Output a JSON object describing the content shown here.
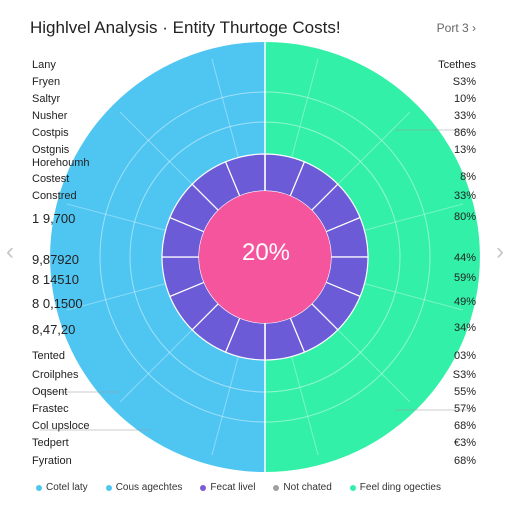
{
  "header": {
    "title": "Highlvel Analysis · Entity Thurtoge Costs!",
    "page_nav": "Port 3 ›"
  },
  "nav": {
    "prev_icon": "chevron-left-icon",
    "next_icon": "chevron-right-icon",
    "prev_glyph": "‹",
    "next_glyph": "›"
  },
  "chart_data": {
    "type": "pie",
    "title": "Highlvel Analysis · Entity Thurtoge Costs!",
    "center_label": "20%",
    "outer_ring": [
      {
        "name": "Cotel laty",
        "value": 50,
        "color": "#4fc6f2"
      },
      {
        "name": "Feel ding ogecties",
        "value": 50,
        "color": "#33f0a8"
      }
    ],
    "middle_ring": {
      "color": "#6b5bd6",
      "segments": 16
    },
    "center": {
      "value": 20,
      "color": "#f5559c"
    },
    "left_labels": [
      "Lany",
      "Fryen",
      "Saltyr",
      "Nusher",
      "Costpis",
      "Ostgnis",
      "Horehoumh",
      "Costest",
      "Constred",
      "1 9,700",
      "9,87920",
      "8 14510",
      "8 0,1500",
      "8,47,20",
      "Tented",
      "Croilphes",
      "Oqsent",
      "Frastec",
      "Col upsloce",
      "Tedpert",
      "Fyration"
    ],
    "right_labels": [
      "Tcethes",
      "S3%",
      "10%",
      "33%",
      "86%",
      "13%",
      "8%",
      "33%",
      "80%",
      "44%",
      "59%",
      "49%",
      "34%",
      "03%",
      "S3%",
      "55%",
      "57%",
      "68%",
      "€3%",
      "68%"
    ],
    "legend": [
      {
        "name": "Cotel laty",
        "color": "#4fc6f2"
      },
      {
        "name": "Cous agechtes",
        "color": "#4fc6f2"
      },
      {
        "name": "Fecat livel",
        "color": "#7b5bd6"
      },
      {
        "name": "Not chated",
        "color": "#a0a0a0"
      },
      {
        "name": "Feel ding ogecties",
        "color": "#33f0a8"
      }
    ]
  }
}
